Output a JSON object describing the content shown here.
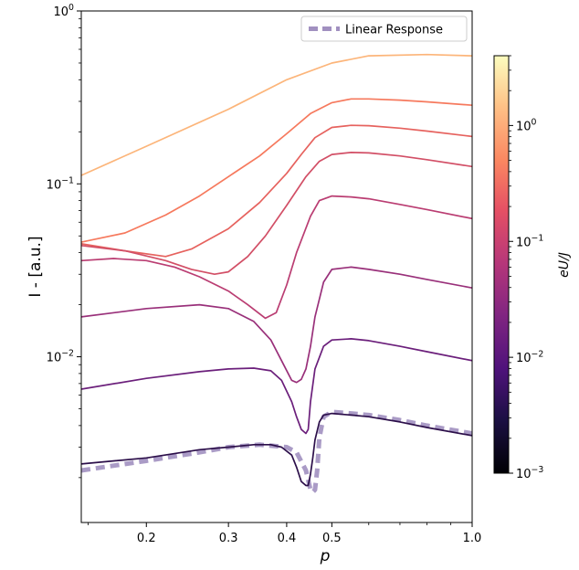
{
  "chart_data": {
    "type": "line",
    "xlabel": "p",
    "ylabel": "I - [a.u.]",
    "x_scale": "log",
    "y_scale": "log",
    "xlim": [
      0.145,
      1.0
    ],
    "ylim": [
      0.0011,
      1.0
    ],
    "x_ticks": [
      {
        "value": 0.2,
        "label": "0.2"
      },
      {
        "value": 0.3,
        "label": "0.3"
      },
      {
        "value": 0.4,
        "label": "0.4"
      },
      {
        "value": 0.5,
        "label": "0.5"
      },
      {
        "value": 1.0,
        "label": "1.0"
      }
    ],
    "y_ticks": [
      {
        "value": 1,
        "base": "10",
        "exp": "0"
      },
      {
        "value": 0.1,
        "base": "10",
        "exp": "−1"
      },
      {
        "value": 0.01,
        "base": "10",
        "exp": "−2"
      }
    ],
    "legend": {
      "location": "upper right",
      "entries": [
        "Linear Response"
      ]
    },
    "colorbar": {
      "label": "eU/J",
      "scale": "log",
      "range": [
        0.001,
        4.0
      ],
      "ticks": [
        {
          "value": 1,
          "base": "10",
          "exp": "0"
        },
        {
          "value": 0.1,
          "base": "10",
          "exp": "−1"
        },
        {
          "value": 0.01,
          "base": "10",
          "exp": "−2"
        },
        {
          "value": 0.001,
          "base": "10",
          "exp": "−3"
        }
      ],
      "colormap": "magma"
    },
    "series": [
      {
        "color": "#fcb57a",
        "x": [
          0.145,
          0.2,
          0.3,
          0.4,
          0.5,
          0.6,
          0.8,
          1.0
        ],
        "y": [
          0.112,
          0.165,
          0.27,
          0.4,
          0.5,
          0.55,
          0.56,
          0.55
        ]
      },
      {
        "color": "#f6795d",
        "x": [
          0.145,
          0.18,
          0.22,
          0.26,
          0.3,
          0.35,
          0.4,
          0.45,
          0.5,
          0.55,
          0.6,
          0.7,
          0.8,
          1.0
        ],
        "y": [
          0.046,
          0.052,
          0.066,
          0.085,
          0.11,
          0.145,
          0.195,
          0.255,
          0.295,
          0.31,
          0.31,
          0.305,
          0.298,
          0.285
        ]
      },
      {
        "color": "#e6625e",
        "x": [
          0.145,
          0.18,
          0.22,
          0.25,
          0.3,
          0.35,
          0.4,
          0.43,
          0.46,
          0.5,
          0.55,
          0.6,
          0.7,
          0.8,
          1.0
        ],
        "y": [
          0.045,
          0.041,
          0.038,
          0.042,
          0.055,
          0.078,
          0.115,
          0.148,
          0.185,
          0.212,
          0.218,
          0.217,
          0.21,
          0.202,
          0.188
        ]
      },
      {
        "color": "#d24f66",
        "x": [
          0.145,
          0.18,
          0.22,
          0.25,
          0.28,
          0.3,
          0.33,
          0.36,
          0.4,
          0.44,
          0.47,
          0.5,
          0.55,
          0.6,
          0.7,
          0.8,
          1.0
        ],
        "y": [
          0.044,
          0.041,
          0.036,
          0.032,
          0.03,
          0.031,
          0.038,
          0.05,
          0.075,
          0.11,
          0.135,
          0.148,
          0.152,
          0.151,
          0.145,
          0.138,
          0.126
        ]
      },
      {
        "color": "#ba3d72",
        "x": [
          0.145,
          0.17,
          0.2,
          0.23,
          0.26,
          0.3,
          0.33,
          0.36,
          0.38,
          0.4,
          0.42,
          0.45,
          0.47,
          0.5,
          0.55,
          0.6,
          0.7,
          0.8,
          1.0
        ],
        "y": [
          0.036,
          0.037,
          0.036,
          0.033,
          0.029,
          0.024,
          0.02,
          0.0167,
          0.018,
          0.026,
          0.04,
          0.065,
          0.08,
          0.085,
          0.084,
          0.082,
          0.076,
          0.071,
          0.063
        ]
      },
      {
        "color": "#99307a",
        "x": [
          0.145,
          0.2,
          0.26,
          0.3,
          0.34,
          0.37,
          0.39,
          0.41,
          0.42,
          0.43,
          0.44,
          0.45,
          0.46,
          0.48,
          0.5,
          0.55,
          0.6,
          0.7,
          0.8,
          1.0
        ],
        "y": [
          0.017,
          0.019,
          0.02,
          0.019,
          0.016,
          0.0125,
          0.0095,
          0.0073,
          0.0071,
          0.0074,
          0.0085,
          0.0115,
          0.017,
          0.027,
          0.032,
          0.033,
          0.032,
          0.03,
          0.028,
          0.025
        ]
      },
      {
        "color": "#6b1f7b",
        "x": [
          0.145,
          0.2,
          0.26,
          0.3,
          0.34,
          0.37,
          0.39,
          0.41,
          0.42,
          0.43,
          0.44,
          0.445,
          0.45,
          0.46,
          0.48,
          0.5,
          0.55,
          0.6,
          0.7,
          0.8,
          1.0
        ],
        "y": [
          0.0065,
          0.0075,
          0.0082,
          0.0085,
          0.0086,
          0.0083,
          0.0073,
          0.0055,
          0.0045,
          0.0038,
          0.0036,
          0.0038,
          0.0055,
          0.0085,
          0.0115,
          0.0125,
          0.0127,
          0.0124,
          0.0115,
          0.0107,
          0.0095
        ]
      },
      {
        "color": "#2c0f4a",
        "x": [
          0.145,
          0.2,
          0.26,
          0.3,
          0.34,
          0.37,
          0.39,
          0.41,
          0.42,
          0.43,
          0.44,
          0.445,
          0.45,
          0.455,
          0.46,
          0.47,
          0.48,
          0.5,
          0.55,
          0.6,
          0.7,
          0.8,
          1.0
        ],
        "y": [
          0.0024,
          0.0026,
          0.0029,
          0.003,
          0.0031,
          0.0031,
          0.003,
          0.0027,
          0.0023,
          0.0019,
          0.0018,
          0.0018,
          0.0021,
          0.0026,
          0.0033,
          0.0042,
          0.0046,
          0.0047,
          0.0046,
          0.0045,
          0.0042,
          0.0039,
          0.0035
        ]
      },
      {
        "name": "Linear Response",
        "dashed": true,
        "color": "#a190c0",
        "x": [
          0.145,
          0.2,
          0.26,
          0.3,
          0.35,
          0.4,
          0.42,
          0.44,
          0.45,
          0.455,
          0.46,
          0.465,
          0.47,
          0.48,
          0.5,
          0.55,
          0.6,
          0.7,
          0.8,
          1.0
        ],
        "y": [
          0.0022,
          0.0025,
          0.0028,
          0.003,
          0.0031,
          0.003,
          0.0028,
          0.0022,
          0.0017,
          0.00165,
          0.0017,
          0.0022,
          0.0034,
          0.0045,
          0.0048,
          0.0047,
          0.0046,
          0.0043,
          0.004,
          0.0036
        ]
      }
    ]
  }
}
